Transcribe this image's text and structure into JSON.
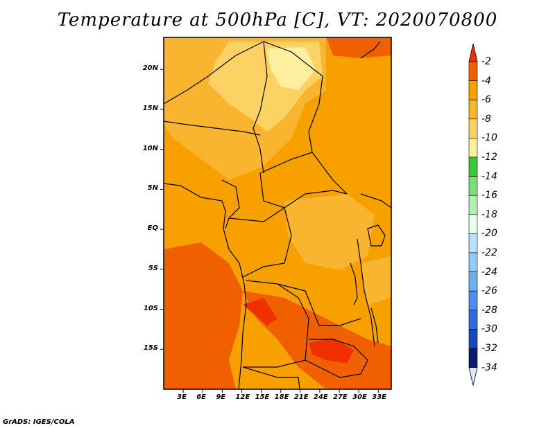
{
  "title": "Temperature at 500hPa [C], VT: 2020070800",
  "credit": "GrADS: IGES/COLA",
  "map": {
    "lon_range": [
      0,
      35
    ],
    "lat_range": [
      -20,
      24
    ],
    "lat_ticks": [
      {
        "lat": 20,
        "label": "20N"
      },
      {
        "lat": 15,
        "label": "15N"
      },
      {
        "lat": 10,
        "label": "10N"
      },
      {
        "lat": 5,
        "label": "5N"
      },
      {
        "lat": 0,
        "label": "EQ"
      },
      {
        "lat": -5,
        "label": "5S"
      },
      {
        "lat": -10,
        "label": "10S"
      },
      {
        "lat": -15,
        "label": "15S"
      }
    ],
    "lon_ticks": [
      {
        "lon": 3,
        "label": "3E"
      },
      {
        "lon": 6,
        "label": "6E"
      },
      {
        "lon": 9,
        "label": "9E"
      },
      {
        "lon": 12,
        "label": "12E"
      },
      {
        "lon": 15,
        "label": "15E"
      },
      {
        "lon": 18,
        "label": "18E"
      },
      {
        "lon": 21,
        "label": "21E"
      },
      {
        "lon": 24,
        "label": "24E"
      },
      {
        "lon": 27,
        "label": "27E"
      },
      {
        "lon": 30,
        "label": "30E"
      },
      {
        "lon": 33,
        "label": "33E"
      }
    ]
  },
  "colorbar": {
    "levels": [
      "-2",
      "-4",
      "-6",
      "-8",
      "-10",
      "-12",
      "-14",
      "-16",
      "-18",
      "-20",
      "-22",
      "-24",
      "-26",
      "-28",
      "-30",
      "-32",
      "-34"
    ],
    "colors": [
      "#f06000",
      "#f8a000",
      "#fab530",
      "#fdd265",
      "#fff0a0",
      "#38c838",
      "#78e278",
      "#b4f0b0",
      "#e6fff0",
      "#b8e2ff",
      "#96cbf8",
      "#6eaff0",
      "#4c8fec",
      "#2e6cdc",
      "#1a4ab8",
      "#0a1a70"
    ],
    "top_arrow_color": "#f03000",
    "bottom_arrow_color": "#e0e6ff"
  }
}
